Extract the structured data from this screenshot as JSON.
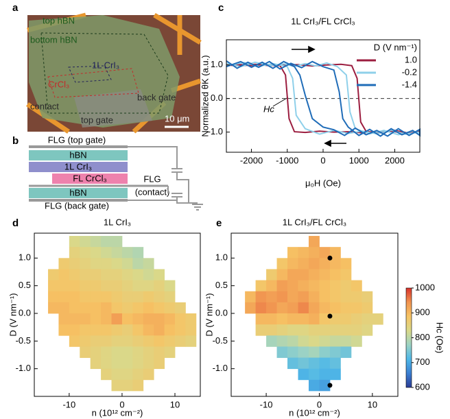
{
  "panel_labels": [
    "a",
    "b",
    "c",
    "d",
    "e"
  ],
  "panel_a": {
    "labels": [
      "top hBN",
      "bottom hBN",
      "1L CrI₃",
      "CrCl₃",
      "contact",
      "back gate",
      "top gate"
    ],
    "scale_bar": "10 μm"
  },
  "panel_b": {
    "layers": [
      "FLG (top gate)",
      "hBN",
      "1L CrI₃",
      "FL CrCl₃",
      "hBN",
      "FLG (back gate)"
    ],
    "contact_lines": [
      "FLG",
      "(contact)"
    ]
  },
  "chart_data": [
    {
      "type": "line",
      "title": "1L CrI₃/FL CrCl₃",
      "xlabel": "μ₀H (Oe)",
      "ylabel": "Normalized θK (a.u.)",
      "xlim": [
        -2700,
        2700
      ],
      "ylim": [
        -1.6,
        1.75
      ],
      "xticks": [
        -2000,
        -1000,
        0,
        1000,
        2000
      ],
      "yticks": [
        {
          "value": -1,
          "label": "-1.0"
        },
        {
          "value": 0,
          "label": "0.0"
        },
        {
          "value": 1,
          "label": "1.0"
        }
      ],
      "reference_line": 0,
      "annotation": "Hc",
      "legend_title": "D (V nm⁻¹)",
      "legend": "upper right",
      "series": [
        {
          "name": "1.0",
          "color": "#9b1d3f",
          "x": [
            -2700,
            -2300,
            -1900,
            -1500,
            -1100,
            -700,
            -300,
            100,
            500,
            800,
            950,
            1050,
            1200,
            1600,
            2000,
            2400,
            2700,
            2700,
            2300,
            1900,
            1500,
            1100,
            700,
            300,
            -100,
            -500,
            -800,
            -950,
            -1050,
            -1200,
            -1600,
            -2000,
            -2400,
            -2700
          ],
          "values": [
            1.0,
            0.97,
            1.02,
            0.98,
            1.0,
            1.01,
            0.97,
            1.0,
            1.02,
            0.98,
            0.6,
            -0.7,
            -0.98,
            -1.02,
            -0.95,
            -1.03,
            -0.98,
            -1.0,
            -1.04,
            -0.97,
            -1.0,
            -1.02,
            -0.99,
            -1.0,
            -0.97,
            -1.01,
            -0.99,
            -0.6,
            0.7,
            0.98,
            1.01,
            0.98,
            1.02,
            0.99
          ]
        },
        {
          "name": "-0.2",
          "color": "#8fd0ea",
          "x": [
            -2700,
            -2300,
            -1900,
            -1500,
            -1100,
            -800,
            -500,
            -200,
            100,
            400,
            650,
            750,
            900,
            1300,
            1700,
            2100,
            2500,
            2700,
            2700,
            2300,
            1900,
            1500,
            1100,
            700,
            300,
            -100,
            -500,
            -750,
            -850,
            -1000,
            -1400,
            -1800,
            -2200,
            -2700
          ],
          "values": [
            1.05,
            0.95,
            1.08,
            0.98,
            1.03,
            0.96,
            1.04,
            0.97,
            1.06,
            0.95,
            0.7,
            -0.4,
            -0.9,
            -1.05,
            -0.95,
            -1.08,
            -0.97,
            -1.03,
            -1.0,
            -1.06,
            -0.94,
            -1.05,
            -0.97,
            -1.04,
            -0.95,
            -1.06,
            -0.9,
            -0.5,
            0.6,
            0.95,
            1.04,
            0.96,
            1.07,
            0.98
          ]
        },
        {
          "name": "-1.4",
          "color": "#1f6cb8",
          "x": [
            -2700,
            -2400,
            -2100,
            -1800,
            -1500,
            -1200,
            -900,
            -600,
            -300,
            0,
            300,
            450,
            550,
            700,
            1000,
            1300,
            1600,
            1900,
            2200,
            2500,
            2700,
            2700,
            2400,
            2100,
            1800,
            1500,
            1200,
            900,
            600,
            300,
            0,
            -300,
            -500,
            -650,
            -800,
            -1100,
            -1400,
            -1700,
            -2000,
            -2300,
            -2700
          ],
          "values": [
            1.12,
            0.9,
            1.08,
            0.93,
            1.1,
            0.88,
            1.05,
            0.92,
            1.1,
            0.95,
            0.85,
            0.2,
            -0.6,
            -0.85,
            -1.1,
            -0.92,
            -1.12,
            -0.9,
            -1.08,
            -0.95,
            -1.1,
            -0.92,
            -1.1,
            -0.9,
            -1.12,
            -0.95,
            -1.08,
            -0.88,
            -1.1,
            -0.93,
            -0.85,
            -0.6,
            0.1,
            0.7,
            0.95,
            1.1,
            0.9,
            1.08,
            0.93,
            1.1,
            0.95
          ]
        }
      ]
    },
    {
      "type": "heatmap",
      "title": "1L CrI₃",
      "xlabel": "n (10¹² cm⁻²)",
      "ylabel": "D (V nm⁻¹)",
      "xlim": [
        -16.6,
        14.8
      ],
      "ylim": [
        -1.5,
        1.45
      ],
      "xticks": [
        -10,
        0,
        10
      ],
      "yticks": [
        {
          "value": 1,
          "label": "1.0"
        },
        {
          "value": 0.5,
          "label": "0.5"
        },
        {
          "value": 0,
          "label": "0.0"
        },
        {
          "value": -0.5,
          "label": "-0.5"
        },
        {
          "value": -1,
          "label": "-1.0"
        }
      ],
      "zlim": [
        600,
        1000
      ],
      "colormap": [
        "#2a3b94",
        "#3b7fd2",
        "#4fb8e8",
        "#9dd3c4",
        "#d9d98a",
        "#f6c465",
        "#f19450",
        "#d8322c"
      ],
      "x": [
        -13,
        -11,
        -9,
        -7,
        -5,
        -3,
        -1,
        1,
        3,
        5,
        7,
        9,
        11,
        13
      ],
      "y": [
        1.3,
        1.1,
        0.9,
        0.7,
        0.5,
        0.3,
        0.1,
        -0.1,
        -0.3,
        -0.5,
        -0.7,
        -0.9,
        -1.1,
        -1.3
      ],
      "z": [
        [
          null,
          null,
          830,
          820,
          810,
          800,
          800,
          null,
          null,
          null,
          null,
          null,
          null,
          null
        ],
        [
          null,
          null,
          850,
          840,
          830,
          820,
          810,
          800,
          790,
          null,
          null,
          null,
          null,
          null
        ],
        [
          null,
          870,
          860,
          850,
          840,
          840,
          830,
          820,
          800,
          810,
          null,
          null,
          null,
          null
        ],
        [
          870,
          880,
          870,
          860,
          860,
          850,
          850,
          840,
          830,
          820,
          830,
          null,
          null,
          null
        ],
        [
          880,
          880,
          880,
          870,
          870,
          860,
          860,
          850,
          840,
          840,
          850,
          830,
          null,
          null
        ],
        [
          890,
          890,
          890,
          880,
          880,
          880,
          870,
          860,
          860,
          870,
          860,
          850,
          null,
          null
        ],
        [
          900,
          900,
          890,
          890,
          890,
          900,
          880,
          870,
          880,
          890,
          880,
          870,
          860,
          null
        ],
        [
          null,
          900,
          900,
          900,
          890,
          900,
          930,
          890,
          900,
          910,
          910,
          900,
          880,
          870
        ],
        [
          null,
          890,
          890,
          880,
          880,
          880,
          870,
          860,
          880,
          900,
          910,
          890,
          880,
          870
        ],
        [
          null,
          null,
          880,
          870,
          860,
          860,
          850,
          850,
          860,
          870,
          880,
          870,
          860,
          850
        ],
        [
          null,
          null,
          null,
          860,
          850,
          840,
          830,
          830,
          840,
          850,
          860,
          850,
          null,
          null
        ],
        [
          null,
          null,
          null,
          null,
          850,
          840,
          830,
          830,
          840,
          850,
          860,
          null,
          null,
          null
        ],
        [
          null,
          null,
          null,
          null,
          null,
          850,
          840,
          840,
          850,
          860,
          null,
          null,
          null,
          null
        ],
        [
          null,
          null,
          null,
          null,
          null,
          null,
          850,
          850,
          860,
          null,
          null,
          null,
          null,
          null
        ]
      ]
    },
    {
      "type": "heatmap",
      "title": "1L CrI₃/FL CrCl₃",
      "xlabel": "n (10¹² cm⁻²)",
      "ylabel": "D (V nm⁻¹)",
      "xlim": [
        -16.6,
        14.8
      ],
      "ylim": [
        -1.5,
        1.45
      ],
      "xticks": [
        -10,
        0,
        10
      ],
      "yticks": [
        {
          "value": 1,
          "label": "1.0"
        },
        {
          "value": 0.5,
          "label": "0.5"
        },
        {
          "value": 0,
          "label": "0.0"
        },
        {
          "value": -0.5,
          "label": "-0.5"
        },
        {
          "value": -1,
          "label": "-1.0"
        }
      ],
      "zlim": [
        600,
        1000
      ],
      "colormap": [
        "#2a3b94",
        "#3b7fd2",
        "#4fb8e8",
        "#9dd3c4",
        "#d9d98a",
        "#f6c465",
        "#f19450",
        "#d8322c"
      ],
      "colorbar": {
        "label": "Hc (Oe)",
        "ticks": [
          600,
          700,
          800,
          900,
          1000
        ]
      },
      "markers": {
        "x": [
          2,
          2,
          2
        ],
        "y": [
          1.0,
          -0.05,
          -1.3
        ]
      },
      "x": [
        -13,
        -11,
        -9,
        -7,
        -5,
        -3,
        -1,
        1,
        3,
        5,
        7,
        9,
        11,
        13
      ],
      "y": [
        1.3,
        1.1,
        0.9,
        0.7,
        0.5,
        0.3,
        0.1,
        -0.1,
        -0.3,
        -0.5,
        -0.7,
        -0.9,
        -1.1,
        -1.3
      ],
      "z": [
        [
          null,
          null,
          null,
          null,
          null,
          null,
          920,
          null,
          null,
          null,
          null,
          null,
          null,
          null
        ],
        [
          null,
          null,
          null,
          null,
          890,
          900,
          910,
          920,
          900,
          null,
          null,
          null,
          null,
          null
        ],
        [
          null,
          null,
          null,
          880,
          900,
          910,
          920,
          910,
          900,
          890,
          null,
          null,
          null,
          null
        ],
        [
          null,
          null,
          870,
          900,
          920,
          920,
          910,
          900,
          890,
          880,
          null,
          null,
          null,
          null
        ],
        [
          null,
          880,
          900,
          930,
          920,
          910,
          900,
          890,
          880,
          870,
          880,
          null,
          null,
          null
        ],
        [
          900,
          940,
          930,
          940,
          920,
          930,
          910,
          890,
          880,
          870,
          870,
          860,
          null,
          null
        ],
        [
          920,
          950,
          940,
          920,
          930,
          950,
          920,
          900,
          890,
          880,
          880,
          870,
          null,
          null
        ],
        [
          null,
          900,
          900,
          890,
          900,
          900,
          910,
          880,
          870,
          870,
          860,
          850,
          850,
          null
        ],
        [
          null,
          860,
          860,
          850,
          840,
          840,
          850,
          850,
          850,
          850,
          850,
          840,
          null,
          null
        ],
        [
          null,
          null,
          780,
          790,
          800,
          820,
          830,
          820,
          810,
          810,
          820,
          null,
          null,
          null
        ],
        [
          null,
          null,
          null,
          750,
          760,
          770,
          780,
          760,
          750,
          740,
          null,
          null,
          null,
          null
        ],
        [
          null,
          null,
          null,
          null,
          730,
          740,
          730,
          720,
          730,
          null,
          null,
          null,
          null,
          null
        ],
        [
          null,
          null,
          null,
          null,
          null,
          710,
          720,
          710,
          710,
          null,
          null,
          null,
          null,
          null
        ],
        [
          null,
          null,
          null,
          null,
          null,
          null,
          700,
          690,
          null,
          null,
          null,
          null,
          null,
          null
        ]
      ]
    }
  ]
}
